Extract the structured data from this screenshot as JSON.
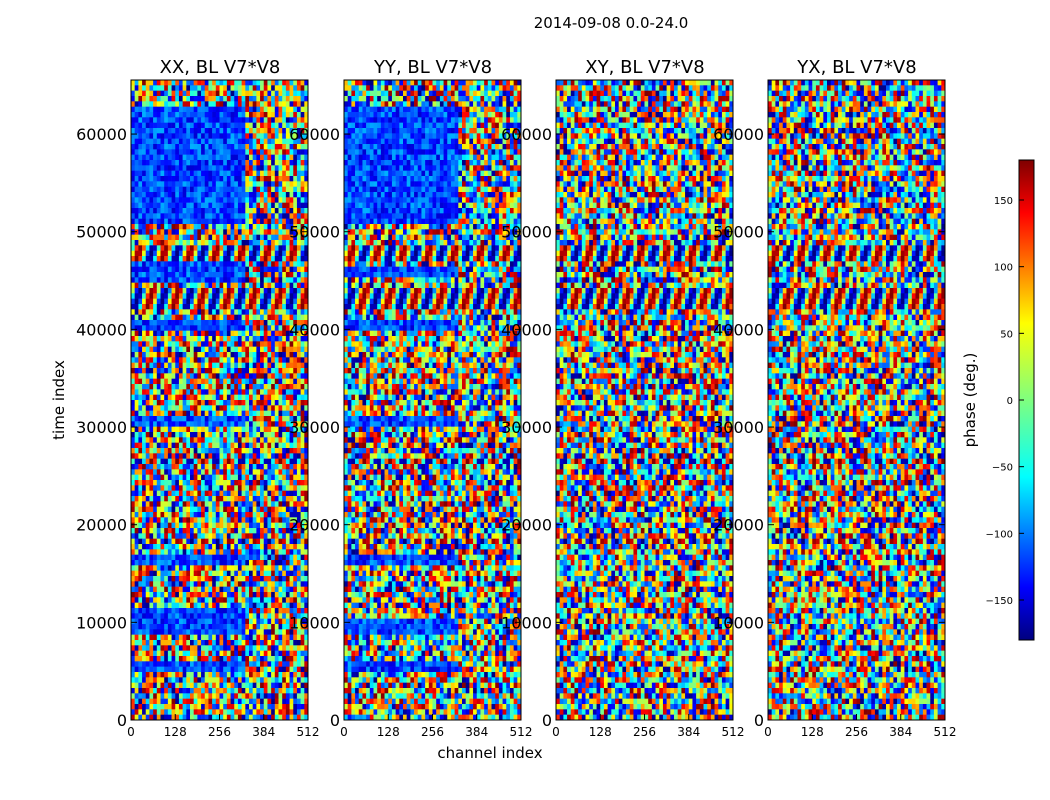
{
  "figure": {
    "suptitle": "2014-09-08 0.0-24.0",
    "ylabel": "time index",
    "xlabel": "channel index"
  },
  "chart_data": {
    "type": "heatmap",
    "shared_x": {
      "label": "channel index",
      "range": [
        0,
        512
      ],
      "ticks": [
        0,
        128,
        256,
        384,
        512
      ],
      "tick_labels": [
        "0",
        "128",
        "256",
        "384",
        "512"
      ]
    },
    "shared_y": {
      "label": "time index",
      "range": [
        0,
        65536
      ],
      "ticks": [
        0,
        10000,
        20000,
        30000,
        40000,
        50000,
        60000
      ],
      "tick_labels": [
        "0",
        "10000",
        "20000",
        "30000",
        "40000",
        "50000",
        "60000"
      ]
    },
    "panels": [
      {
        "title": "XX, BL V7*V8",
        "polarization": "XX",
        "baseline": "V7*V8"
      },
      {
        "title": "YY, BL V7*V8",
        "polarization": "YY",
        "baseline": "V7*V8"
      },
      {
        "title": "XY, BL V7*V8",
        "polarization": "XY",
        "baseline": "V7*V8"
      },
      {
        "title": "YX, BL V7*V8",
        "polarization": "YX",
        "baseline": "V7*V8"
      }
    ],
    "colorbar": {
      "label": "phase (deg.)",
      "range": [
        -180,
        180
      ],
      "ticks": [
        150,
        100,
        50,
        0,
        -50,
        -100,
        -150
      ],
      "tick_labels": [
        "150",
        "100",
        "50",
        "0",
        "−50",
        "−100",
        "−150"
      ],
      "colormap": "jet"
    }
  },
  "colors": {
    "jet_stops": [
      "#00007f",
      "#0000ff",
      "#00ffff",
      "#ffff00",
      "#ff0000",
      "#7f0000"
    ]
  }
}
